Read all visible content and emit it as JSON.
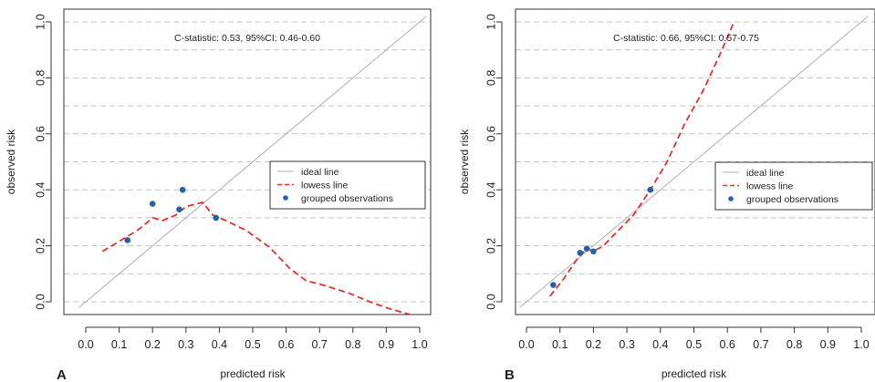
{
  "chart_data": [
    {
      "type": "scatter",
      "panel_label": "A",
      "annotation": "C-statistic: 0.53, 95%CI: 0.46-0.60",
      "xlabel": "predicted risk",
      "ylabel": "observed risk",
      "xlim": [
        0.0,
        1.0
      ],
      "ylim": [
        0.0,
        1.0
      ],
      "xticks": [
        "0.0",
        "0.1",
        "0.2",
        "0.3",
        "0.4",
        "0.5",
        "0.6",
        "0.7",
        "0.8",
        "0.9",
        "1.0"
      ],
      "yticks": [
        "0.0",
        "0.2",
        "0.4",
        "0.6",
        "0.8",
        "1.0"
      ],
      "grid": "horizontal dashed",
      "legend_position": "right",
      "series": [
        {
          "name": "ideal line",
          "kind": "line",
          "color": "#b0b0b0",
          "x": [
            -0.02,
            1.02
          ],
          "y": [
            -0.02,
            1.02
          ]
        },
        {
          "name": "lowess line",
          "kind": "dashed-line",
          "color": "#e8302a",
          "x": [
            0.05,
            0.12,
            0.16,
            0.2,
            0.23,
            0.27,
            0.3,
            0.35,
            0.38,
            0.42,
            0.48,
            0.55,
            0.61,
            0.66,
            0.71,
            0.79,
            0.85,
            0.91,
            0.97
          ],
          "y": [
            0.18,
            0.23,
            0.26,
            0.3,
            0.29,
            0.31,
            0.34,
            0.355,
            0.31,
            0.29,
            0.255,
            0.195,
            0.12,
            0.075,
            0.06,
            0.03,
            0.0,
            -0.025,
            -0.045
          ]
        },
        {
          "name": "grouped observations",
          "kind": "points",
          "color": "#2462a8",
          "x": [
            0.125,
            0.2,
            0.28,
            0.29,
            0.39
          ],
          "y": [
            0.22,
            0.35,
            0.33,
            0.4,
            0.3
          ]
        }
      ]
    },
    {
      "type": "scatter",
      "panel_label": "B",
      "annotation": "C-statistic: 0.66, 95%CI: 0.57-0.75",
      "xlabel": "predicted risk",
      "ylabel": "observed risk",
      "xlim": [
        0.0,
        1.0
      ],
      "ylim": [
        0.0,
        1.0
      ],
      "xticks": [
        "0.0",
        "0.1",
        "0.2",
        "0.3",
        "0.4",
        "0.5",
        "0.6",
        "0.7",
        "0.8",
        "0.9",
        "1.0"
      ],
      "yticks": [
        "0.0",
        "0.2",
        "0.4",
        "0.6",
        "0.8",
        "1.0"
      ],
      "grid": "horizontal dashed",
      "legend_position": "right",
      "series": [
        {
          "name": "ideal line",
          "kind": "line",
          "color": "#b0b0b0",
          "x": [
            -0.02,
            1.02
          ],
          "y": [
            -0.02,
            1.02
          ]
        },
        {
          "name": "lowess line",
          "kind": "dashed-line",
          "color": "#e8302a",
          "x": [
            0.07,
            0.11,
            0.15,
            0.18,
            0.2,
            0.23,
            0.27,
            0.32,
            0.37,
            0.42,
            0.47,
            0.53,
            0.58,
            0.62
          ],
          "y": [
            0.02,
            0.08,
            0.15,
            0.19,
            0.18,
            0.2,
            0.25,
            0.31,
            0.4,
            0.5,
            0.63,
            0.76,
            0.89,
            1.0
          ]
        },
        {
          "name": "grouped observations",
          "kind": "points",
          "color": "#2462a8",
          "x": [
            0.08,
            0.16,
            0.18,
            0.2,
            0.37
          ],
          "y": [
            0.06,
            0.175,
            0.19,
            0.18,
            0.4
          ]
        }
      ]
    }
  ]
}
